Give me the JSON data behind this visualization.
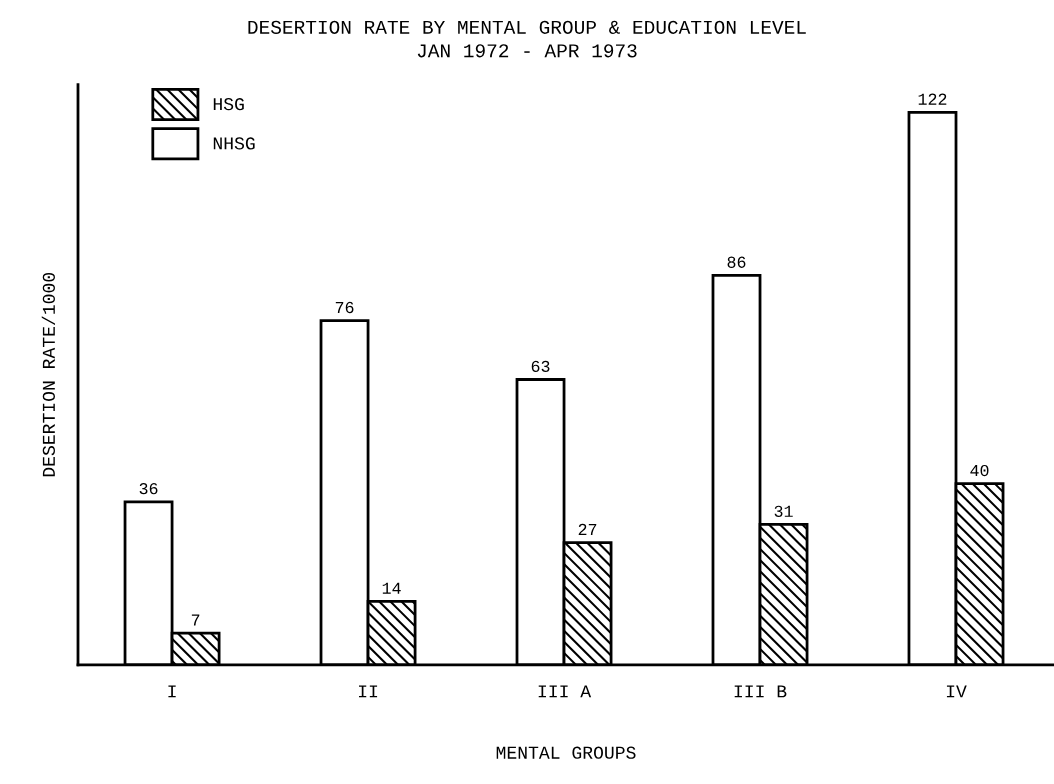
{
  "chart_data": {
    "type": "bar",
    "title": "DESERTION RATE BY MENTAL GROUP & EDUCATION LEVEL",
    "subtitle": "JAN 1972 - APR 1973",
    "xlabel": "MENTAL GROUPS",
    "ylabel": "DESERTION RATE/1000",
    "categories": [
      "I",
      "II",
      "III A",
      "III B",
      "IV"
    ],
    "series": [
      {
        "name": "NHSG",
        "color": "#ffffff",
        "values": [
          36,
          76,
          63,
          86,
          122
        ]
      },
      {
        "name": "HSG",
        "color": "#000000",
        "values": [
          7,
          14,
          27,
          31,
          40
        ]
      }
    ],
    "data_labels": true,
    "legend": "top left",
    "tick_labels": "x",
    "grid": false
  }
}
